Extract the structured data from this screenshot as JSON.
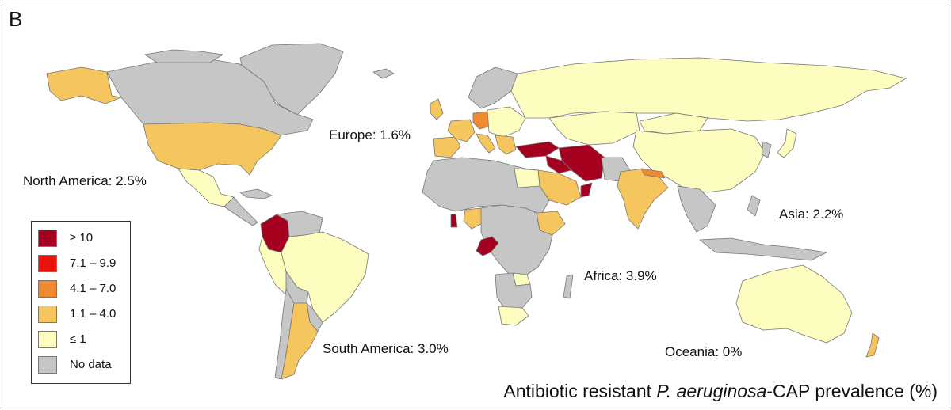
{
  "panel_letter": "B",
  "colors": {
    "ge10": "#a50020",
    "r71_99": "#e8140c",
    "r41_70": "#f08a30",
    "r11_40": "#f5c55e",
    "le1": "#fdfdc0",
    "nodata": "#c6c6c6",
    "border": "#777777"
  },
  "legend": [
    {
      "label": "≥ 10",
      "color": "#a50020"
    },
    {
      "label": "7.1 – 9.9",
      "color": "#e8140c"
    },
    {
      "label": "4.1 – 7.0",
      "color": "#f08a30"
    },
    {
      "label": "1.1 – 4.0",
      "color": "#f5c55e"
    },
    {
      "label": "≤ 1",
      "color": "#fdfdc0"
    },
    {
      "label": "No data",
      "color": "#c6c6c6"
    }
  ],
  "regions": {
    "europe": "Europe: 1.6%",
    "north_america": "North America: 2.5%",
    "south_america": "South America: 3.0%",
    "africa": "Africa: 3.9%",
    "asia": "Asia: 2.2%",
    "oceania": "Oceania: 0%"
  },
  "caption": {
    "prefix": "Antibiotic resistant ",
    "organism": "P. aeruginosa",
    "suffix": "-CAP prevalence (%)"
  }
}
